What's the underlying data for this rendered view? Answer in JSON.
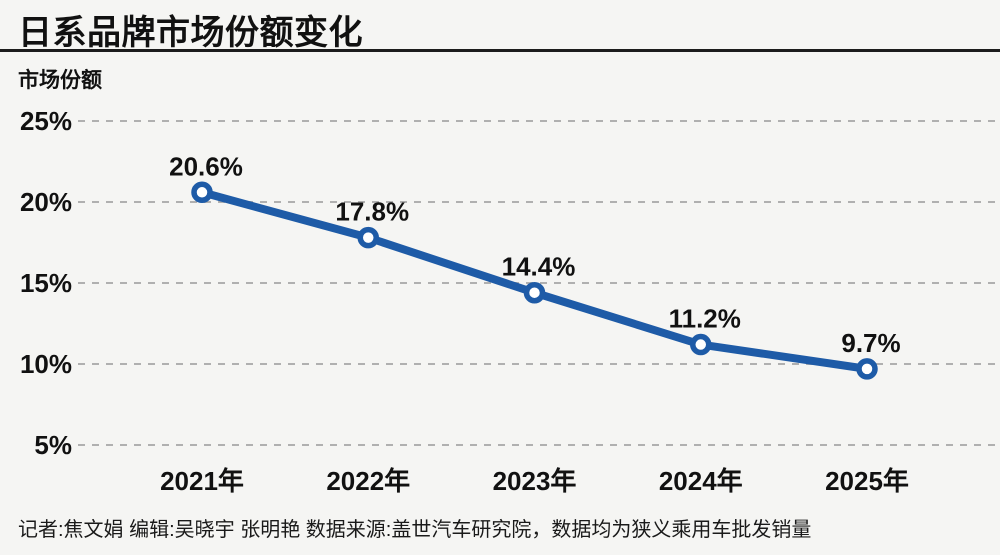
{
  "header": {
    "title": "日系品牌市场份额变化"
  },
  "chart_data": {
    "type": "line",
    "title": "日系品牌市场份额变化",
    "ylabel": "市场份额",
    "xlabel": "",
    "categories": [
      "2021年",
      "2022年",
      "2023年",
      "2024年",
      "2025年"
    ],
    "values": [
      20.6,
      17.8,
      14.4,
      11.2,
      9.7
    ],
    "data_labels": [
      "20.6%",
      "17.8%",
      "14.4%",
      "11.2%",
      "9.7%"
    ],
    "yticks": [
      {
        "value": 25,
        "label": "25%"
      },
      {
        "value": 20,
        "label": "20%"
      },
      {
        "value": 15,
        "label": "15%"
      },
      {
        "value": 10,
        "label": "10%"
      },
      {
        "value": 5,
        "label": "5%"
      }
    ],
    "ylim": [
      5,
      25
    ],
    "grid": "horizontal-dashed",
    "legend_position": "none",
    "marker": "open-circle",
    "line_color": "#1e5ba7",
    "grid_color": "#b0b0b0",
    "label_color": "#111111"
  },
  "footer": {
    "credits": "记者:焦文娟  编辑:吴晓宇 张明艳  数据来源:盖世汽车研究院，数据均为狭义乘用车批发销量"
  },
  "colors": {
    "background": "#f5f5f3",
    "accent_blue": "#1e5ba7",
    "grid": "#b0b0b0",
    "text": "#111111",
    "divider": "#1c1c1c"
  }
}
